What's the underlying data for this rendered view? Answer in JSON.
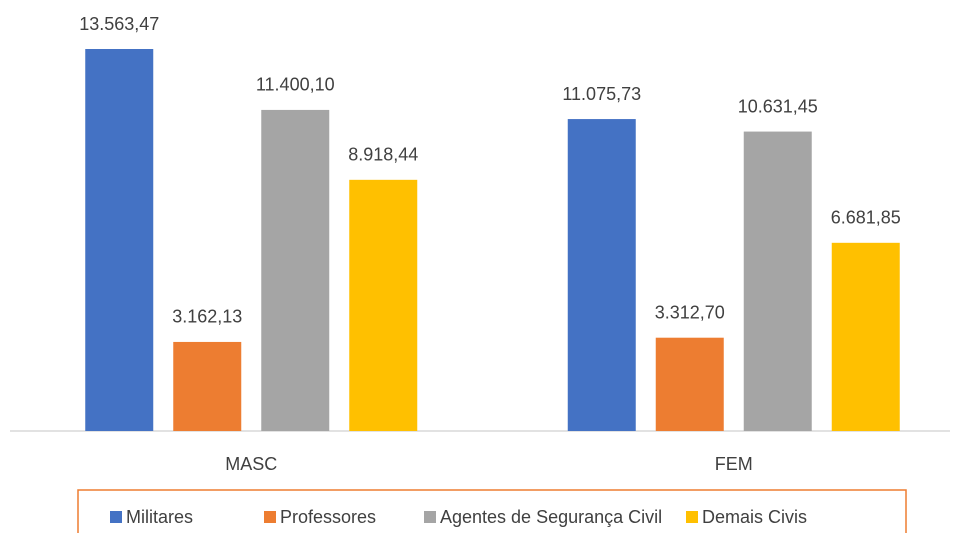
{
  "chart_data": {
    "type": "bar",
    "categories": [
      "MASC",
      "FEM"
    ],
    "series": [
      {
        "name": "Militares",
        "color": "#4472c4",
        "values": [
          13563.47,
          11075.73
        ],
        "value_labels": [
          "13.563,47",
          "11.075,73"
        ]
      },
      {
        "name": "Professores",
        "color": "#ed7d31",
        "values": [
          3162.13,
          3312.7
        ],
        "value_labels": [
          "3.162,13",
          "3.312,70"
        ]
      },
      {
        "name": "Agentes de Segurança Civil",
        "color": "#a5a5a5",
        "values": [
          11400.1,
          10631.45
        ],
        "value_labels": [
          "11.400,10",
          "10.631,45"
        ]
      },
      {
        "name": "Demais Civis",
        "color": "#ffc000",
        "values": [
          8918.44,
          6681.85
        ],
        "value_labels": [
          "8.918,44",
          "6.681,85"
        ]
      }
    ],
    "legend": "bottom"
  }
}
